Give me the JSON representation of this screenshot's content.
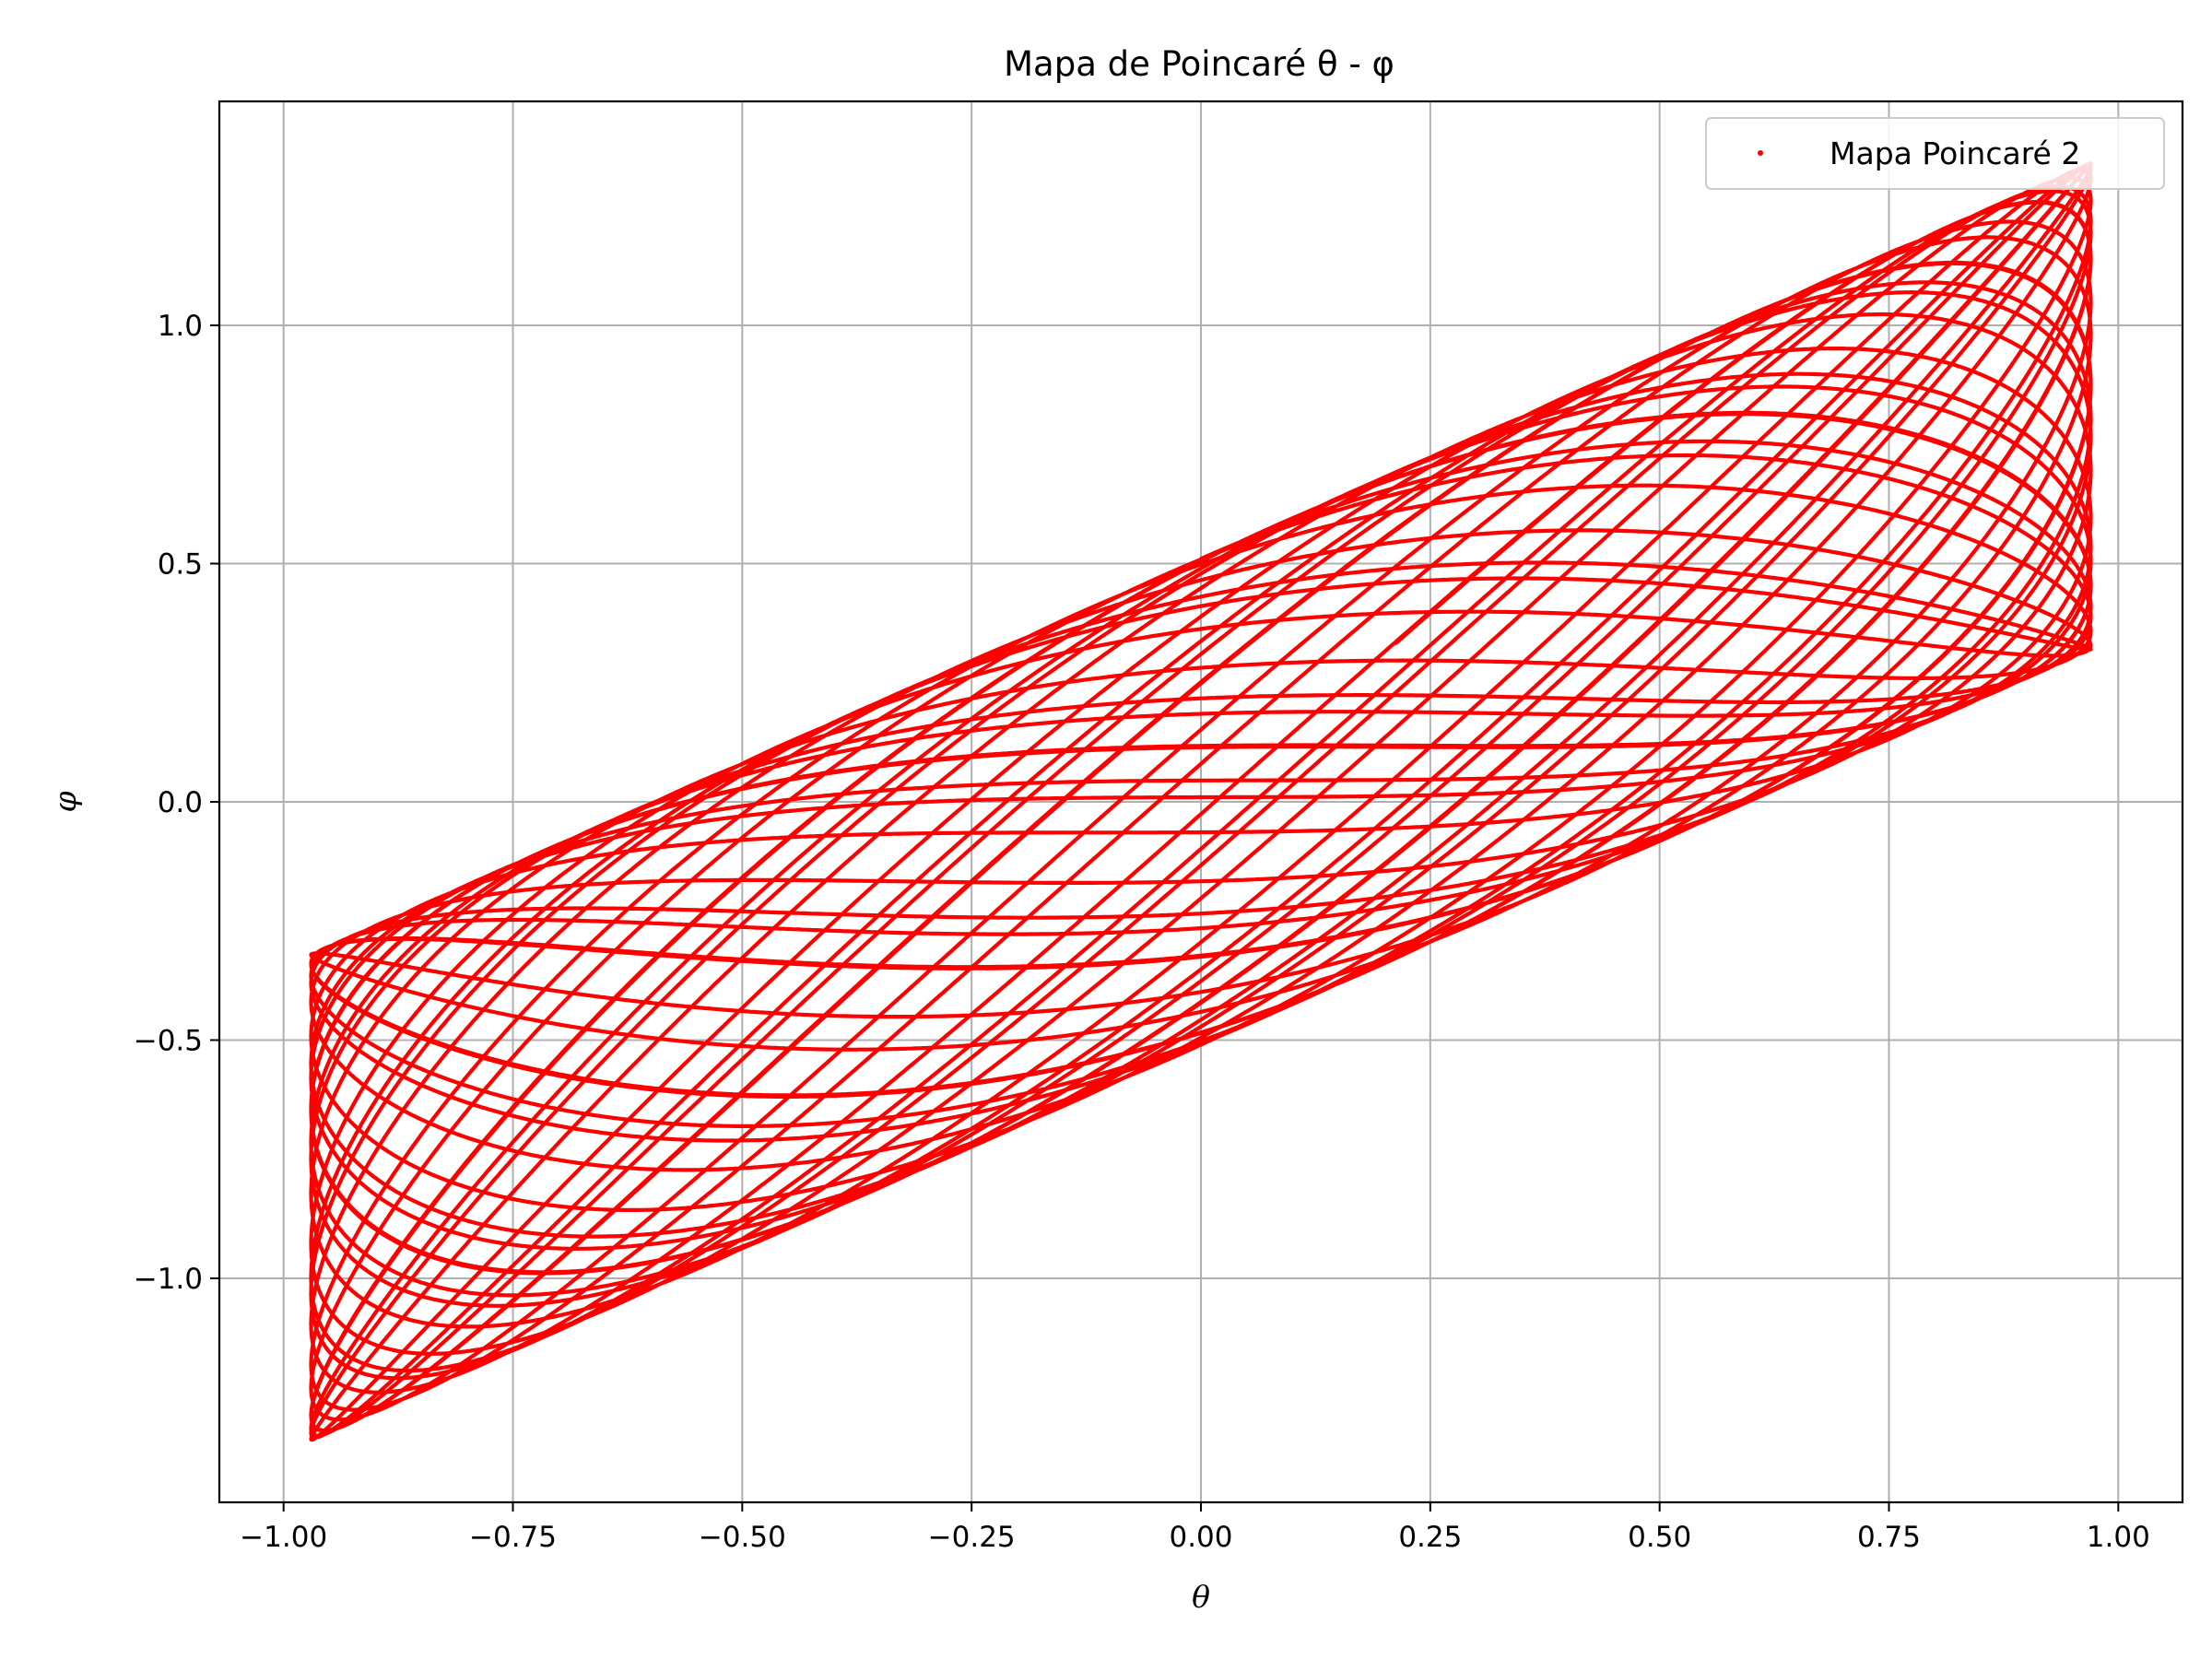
{
  "chart_data": {
    "type": "scatter",
    "title": "Mapa de Poincaré θ - φ",
    "xlabel": "θ",
    "ylabel": "φ",
    "xlim": [
      -1.07,
      1.07
    ],
    "ylim": [
      -1.47,
      1.47
    ],
    "xticks": [
      -1.0,
      -0.75,
      -0.5,
      -0.25,
      0.0,
      0.25,
      0.5,
      0.75,
      1.0
    ],
    "xtick_labels": [
      "−1.00",
      "−0.75",
      "−0.50",
      "−0.25",
      "0.00",
      "0.25",
      "0.50",
      "0.75",
      "1.00"
    ],
    "yticks": [
      -1.0,
      -0.5,
      0.0,
      0.5,
      1.0
    ],
    "ytick_labels": [
      "−1.0",
      "−0.5",
      "0.0",
      "0.5",
      "1.0"
    ],
    "grid": true,
    "legend_position": "top-right",
    "series": [
      {
        "name": "Mapa Poincaré 2",
        "color": "#ff0000",
        "marker": "point",
        "trajectory": {
          "theta": "0.97*sin(t)",
          "phi": "0.51*cos(1.618*t)+0.83*sin(t)",
          "t_range": [
            0,
            160
          ]
        },
        "extent": {
          "theta_min": -0.97,
          "theta_max": 0.97,
          "phi_min": -1.34,
          "phi_max": 1.34
        }
      }
    ]
  }
}
